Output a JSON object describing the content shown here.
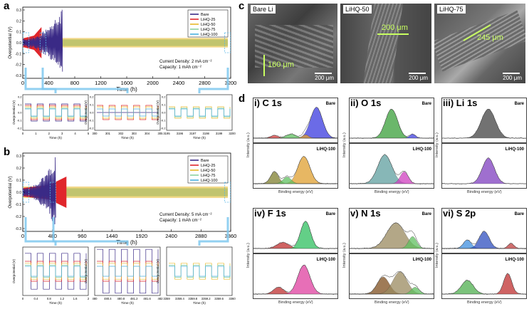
{
  "panels": {
    "a": {
      "letter": "a",
      "legend": [
        "Bare",
        "LiHQ-25",
        "LiHQ-50",
        "LiHQ-75",
        "LiHQ-100"
      ],
      "colors": [
        "#3a2a86",
        "#e0262b",
        "#e8b828",
        "#8ad0a0",
        "#4ab0e0"
      ],
      "ylabel": "Overpotential (V)",
      "xlabel": "Time (h)",
      "yticks": [
        "0.3",
        "0.2",
        "0.1",
        "0.0",
        "-0.1",
        "-0.2",
        "-0.3"
      ],
      "xticks": [
        "0",
        "400",
        "800",
        "1200",
        "1600",
        "2000",
        "2400",
        "2800",
        "3200"
      ],
      "note1": "Current Density: 2 mA cm⁻²",
      "note2": "Capacity: 1 mAh cm⁻²",
      "insets": [
        {
          "xticks": [
            "0",
            "1",
            "2",
            "3",
            "4",
            "5"
          ],
          "xlabel": "Time (h)",
          "yticks": [
            "0.2",
            "0.1",
            "0.0",
            "-0.1",
            "-0.2"
          ]
        },
        {
          "xticks": [
            "300",
            "301",
            "302",
            "303",
            "304",
            "305"
          ],
          "xlabel": "Time (h)",
          "yticks": [
            "0.2",
            "0.1",
            "0.0",
            "-0.1",
            "-0.2"
          ]
        },
        {
          "xticks": [
            "3195",
            "3196",
            "3197",
            "3198",
            "3199",
            "3200"
          ],
          "xlabel": "Time (h)",
          "yticks": [
            "0.2",
            "0.1",
            "0.0",
            "-0.1",
            "-0.2"
          ]
        }
      ]
    },
    "b": {
      "letter": "b",
      "legend": [
        "Bare",
        "LiHQ-25",
        "LiHQ-50",
        "LiHQ-75",
        "LiHQ-100"
      ],
      "ylabel": "Overpotential (V)",
      "xlabel": "Time (h)",
      "yticks": [
        "0.3",
        "0.2",
        "0.1",
        "0.0",
        "-0.1",
        "-0.2",
        "-0.3"
      ],
      "xticks": [
        "0",
        "480",
        "960",
        "1440",
        "1920",
        "2400",
        "2880",
        "3360"
      ],
      "note1": "Current Density: 5 mA cm⁻²",
      "note2": "Capacity: 1 mAh cm⁻²",
      "insets": [
        {
          "xticks": [
            "0",
            "0.4",
            "0.8",
            "1.2",
            "1.6",
            "2"
          ],
          "xlabel": "Time (h)"
        },
        {
          "xticks": [
            "480",
            "480.4",
            "480.8",
            "481.2",
            "481.6",
            "482"
          ],
          "xlabel": "Time (h)"
        },
        {
          "xticks": [
            "3359",
            "3359.4",
            "3359.8",
            "3359.2",
            "3359.6",
            "3360"
          ],
          "xlabel": "Time (h)"
        }
      ]
    },
    "c": {
      "letter": "c",
      "images": [
        {
          "label": "Bare Li",
          "dim": "160 μm",
          "scale": "200 μm"
        },
        {
          "label": "LiHQ-50",
          "dim": "200 μm",
          "scale": "200 μm"
        },
        {
          "label": "LiHQ-75",
          "dim": "245 μm",
          "scale": "200 μm"
        }
      ]
    },
    "d": {
      "letter": "d",
      "xps": [
        {
          "title": "i)",
          "element": "C 1s",
          "tags": [
            "Bare",
            "LiHQ-100"
          ]
        },
        {
          "title": "ii)",
          "element": "O 1s",
          "tags": [
            "Bare",
            "LiHQ-100"
          ]
        },
        {
          "title": "iii)",
          "element": "Li 1s",
          "tags": [
            "Bare",
            "LiHQ-100"
          ]
        },
        {
          "title": "iv)",
          "element": "F 1s",
          "tags": [
            "Bare",
            "LiHQ-100"
          ]
        },
        {
          "title": "v)",
          "element": "N 1s",
          "tags": [
            "Bare",
            "LiHQ-100"
          ]
        },
        {
          "title": "vi)",
          "element": "S 2p",
          "tags": [
            "Bare",
            "LiHQ-100"
          ]
        }
      ],
      "xlabel": "Binding energy (eV)",
      "ylabel": "Intensity (a.u.)"
    }
  }
}
